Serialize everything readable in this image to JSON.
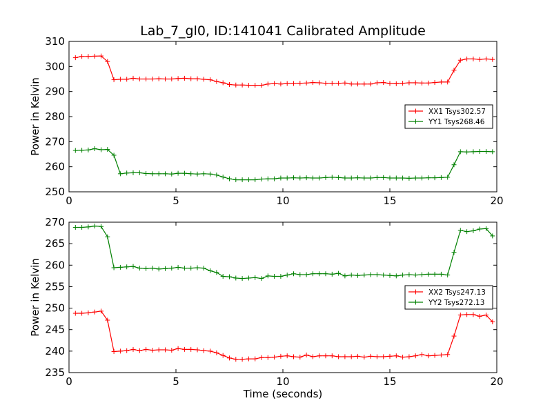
{
  "title": "Lab_7_gl0, ID:141041 Calibrated Amplitude",
  "colors": {
    "red": "#ff0000",
    "green": "#008000"
  },
  "chart_data": [
    {
      "type": "line",
      "xlabel": "Time (seconds)",
      "ylabel": "Power in Kelvin",
      "xlim": [
        0,
        20
      ],
      "ylim": [
        250,
        310
      ],
      "xticks": [
        0,
        5,
        10,
        15,
        20
      ],
      "yticks": [
        250,
        260,
        270,
        280,
        290,
        300,
        310
      ],
      "legend_position": "center-right",
      "x": [
        0.3,
        0.6,
        0.9,
        1.2,
        1.5,
        1.8,
        2.1,
        2.4,
        2.7,
        3.0,
        3.3,
        3.6,
        3.9,
        4.2,
        4.5,
        4.8,
        5.1,
        5.4,
        5.7,
        6.0,
        6.3,
        6.6,
        6.9,
        7.2,
        7.5,
        7.8,
        8.1,
        8.4,
        8.7,
        9.0,
        9.3,
        9.6,
        9.9,
        10.2,
        10.5,
        10.8,
        11.1,
        11.4,
        11.7,
        12.0,
        12.3,
        12.6,
        12.9,
        13.2,
        13.5,
        13.8,
        14.1,
        14.4,
        14.7,
        15.0,
        15.3,
        15.6,
        15.9,
        16.2,
        16.5,
        16.8,
        17.1,
        17.4,
        17.7,
        18.0,
        18.3,
        18.6,
        18.9,
        19.2,
        19.5,
        19.8
      ],
      "series": [
        {
          "name": "XX1 Tsys302.57",
          "color": "#ff0000",
          "values": [
            303.5,
            304.0,
            304.0,
            304.1,
            304.2,
            302.0,
            294.7,
            294.9,
            294.9,
            295.3,
            295.0,
            295.0,
            295.0,
            295.1,
            295.0,
            295.0,
            295.2,
            295.3,
            295.1,
            295.1,
            294.9,
            294.7,
            294.0,
            293.5,
            292.8,
            292.6,
            292.6,
            292.5,
            292.5,
            292.5,
            293.0,
            293.2,
            293.0,
            293.2,
            293.2,
            293.3,
            293.4,
            293.6,
            293.5,
            293.3,
            293.3,
            293.3,
            293.4,
            293.0,
            293.0,
            293.0,
            293.0,
            293.5,
            293.6,
            293.2,
            293.1,
            293.3,
            293.5,
            293.5,
            293.4,
            293.4,
            293.6,
            293.8,
            293.8,
            298.5,
            302.5,
            303.0,
            303.0,
            302.8,
            303.0,
            302.8
          ]
        },
        {
          "name": "YY1 Tsys268.46",
          "color": "#008000",
          "values": [
            266.5,
            266.6,
            266.7,
            267.2,
            266.8,
            266.9,
            264.6,
            257.2,
            257.5,
            257.6,
            257.6,
            257.3,
            257.2,
            257.2,
            257.2,
            257.1,
            257.4,
            257.4,
            257.2,
            257.1,
            257.2,
            257.1,
            256.7,
            255.9,
            255.2,
            254.8,
            254.8,
            254.8,
            254.8,
            255.1,
            255.2,
            255.2,
            255.5,
            255.5,
            255.6,
            255.5,
            255.6,
            255.5,
            255.5,
            255.7,
            255.8,
            255.7,
            255.5,
            255.5,
            255.6,
            255.5,
            255.5,
            255.7,
            255.7,
            255.5,
            255.5,
            255.5,
            255.4,
            255.5,
            255.5,
            255.6,
            255.6,
            255.7,
            255.8,
            260.8,
            266.0,
            265.9,
            266.0,
            266.1,
            266.1,
            266.0
          ]
        }
      ]
    },
    {
      "type": "line",
      "xlabel": "Time (seconds)",
      "ylabel": "Power in Kelvin",
      "xlim": [
        0,
        20
      ],
      "ylim": [
        235,
        270
      ],
      "xticks": [
        0,
        5,
        10,
        15,
        20
      ],
      "yticks": [
        235,
        240,
        245,
        250,
        255,
        260,
        265,
        270
      ],
      "legend_position": "center-right",
      "x": [
        0.3,
        0.6,
        0.9,
        1.2,
        1.5,
        1.8,
        2.1,
        2.4,
        2.7,
        3.0,
        3.3,
        3.6,
        3.9,
        4.2,
        4.5,
        4.8,
        5.1,
        5.4,
        5.7,
        6.0,
        6.3,
        6.6,
        6.9,
        7.2,
        7.5,
        7.8,
        8.1,
        8.4,
        8.7,
        9.0,
        9.3,
        9.6,
        9.9,
        10.2,
        10.5,
        10.8,
        11.1,
        11.4,
        11.7,
        12.0,
        12.3,
        12.6,
        12.9,
        13.2,
        13.5,
        13.8,
        14.1,
        14.4,
        14.7,
        15.0,
        15.3,
        15.6,
        15.9,
        16.2,
        16.5,
        16.8,
        17.1,
        17.4,
        17.7,
        18.0,
        18.3,
        18.6,
        18.9,
        19.2,
        19.5,
        19.8
      ],
      "series": [
        {
          "name": "XX2 Tsys247.13",
          "color": "#ff0000",
          "values": [
            248.8,
            248.8,
            248.9,
            249.1,
            249.3,
            247.2,
            239.9,
            240.0,
            240.1,
            240.4,
            240.1,
            240.4,
            240.2,
            240.3,
            240.3,
            240.2,
            240.6,
            240.4,
            240.4,
            240.3,
            240.1,
            240.0,
            239.6,
            239.0,
            238.4,
            238.1,
            238.1,
            238.2,
            238.2,
            238.5,
            238.5,
            238.6,
            238.8,
            238.9,
            238.7,
            238.6,
            239.1,
            238.7,
            238.9,
            238.9,
            238.9,
            238.7,
            238.7,
            238.7,
            238.8,
            238.6,
            238.8,
            238.7,
            238.7,
            238.8,
            238.9,
            238.6,
            238.7,
            238.9,
            239.2,
            238.9,
            239.0,
            239.1,
            239.2,
            243.5,
            248.4,
            248.5,
            248.5,
            248.1,
            248.4,
            246.8
          ]
        },
        {
          "name": "YY2 Tsys272.13",
          "color": "#008000",
          "values": [
            268.8,
            268.8,
            268.9,
            269.1,
            269.0,
            266.6,
            259.4,
            259.5,
            259.6,
            259.7,
            259.3,
            259.2,
            259.3,
            259.1,
            259.2,
            259.3,
            259.5,
            259.3,
            259.3,
            259.4,
            259.3,
            258.7,
            258.3,
            257.4,
            257.3,
            257.0,
            256.9,
            257.0,
            257.1,
            256.9,
            257.5,
            257.4,
            257.4,
            257.7,
            258.0,
            257.8,
            257.8,
            258.0,
            258.0,
            258.0,
            257.9,
            258.1,
            257.5,
            257.7,
            257.6,
            257.7,
            257.8,
            257.8,
            257.7,
            257.6,
            257.5,
            257.7,
            257.8,
            257.7,
            257.8,
            257.9,
            257.9,
            257.9,
            257.7,
            263.0,
            268.1,
            267.8,
            268.0,
            268.4,
            268.5,
            266.8
          ]
        }
      ]
    }
  ]
}
